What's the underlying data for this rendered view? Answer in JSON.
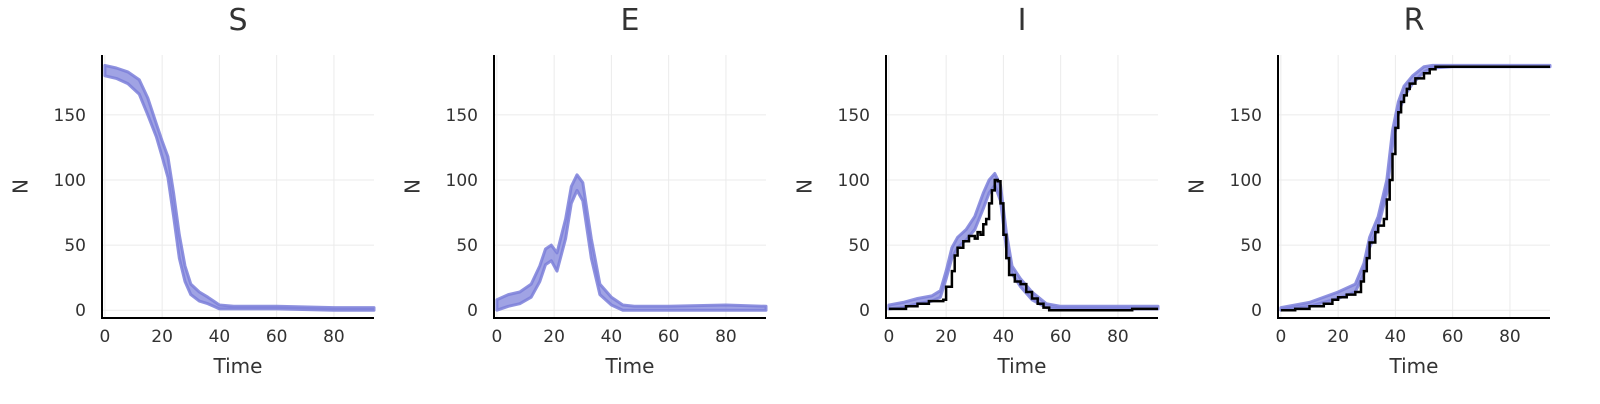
{
  "chart_data": [
    {
      "type": "line",
      "title": "S",
      "xlabel": "Time",
      "ylabel": "N",
      "xlim": [
        -1,
        94
      ],
      "ylim": [
        -6,
        196
      ],
      "xticks": [
        0,
        20,
        40,
        60,
        80
      ],
      "yticks": [
        0,
        50,
        100,
        150
      ],
      "grid": true,
      "series": [
        {
          "style": "band",
          "color": "#7b7fd9",
          "x": [
            0,
            4,
            8,
            12,
            15,
            18,
            20,
            22,
            24,
            26,
            28,
            30,
            33,
            36,
            38,
            40,
            45,
            60,
            80,
            94
          ],
          "upper": [
            188,
            186,
            183,
            177,
            163,
            143,
            130,
            118,
            90,
            58,
            34,
            20,
            14,
            10,
            7,
            4,
            3,
            3,
            2,
            2
          ],
          "lower": [
            180,
            178,
            174,
            166,
            150,
            133,
            118,
            102,
            72,
            40,
            22,
            12,
            7,
            5,
            3,
            1,
            1,
            1,
            0,
            0
          ]
        }
      ]
    },
    {
      "type": "line",
      "title": "E",
      "xlabel": "Time",
      "ylabel": "N",
      "xlim": [
        -1,
        94
      ],
      "ylim": [
        -6,
        196
      ],
      "xticks": [
        0,
        20,
        40,
        60,
        80
      ],
      "yticks": [
        0,
        50,
        100,
        150
      ],
      "grid": true,
      "series": [
        {
          "style": "band",
          "color": "#7b7fd9",
          "x": [
            0,
            4,
            8,
            12,
            15,
            17,
            19,
            21,
            24,
            26,
            28,
            30,
            33,
            36,
            40,
            44,
            48,
            60,
            80,
            94
          ],
          "upper": [
            8,
            12,
            14,
            20,
            34,
            47,
            50,
            44,
            70,
            95,
            104,
            98,
            55,
            20,
            10,
            4,
            3,
            3,
            4,
            3
          ],
          "lower": [
            0,
            3,
            5,
            10,
            22,
            35,
            38,
            30,
            55,
            82,
            92,
            84,
            40,
            12,
            4,
            0,
            0,
            0,
            0,
            0
          ]
        }
      ]
    },
    {
      "type": "line",
      "title": "I",
      "xlabel": "Time",
      "ylabel": "N",
      "xlim": [
        -1,
        94
      ],
      "ylim": [
        -6,
        196
      ],
      "xticks": [
        0,
        20,
        40,
        60,
        80
      ],
      "yticks": [
        0,
        50,
        100,
        150
      ],
      "grid": true,
      "series": [
        {
          "style": "band",
          "color": "#7b7fd9",
          "x": [
            0,
            5,
            10,
            15,
            18,
            20,
            22,
            24,
            27,
            30,
            33,
            35,
            37,
            39,
            41,
            43,
            46,
            50,
            55,
            60,
            94
          ],
          "upper": [
            4,
            6,
            9,
            11,
            15,
            30,
            48,
            56,
            62,
            72,
            90,
            100,
            105,
            96,
            60,
            34,
            24,
            14,
            5,
            3,
            3
          ],
          "lower": [
            1,
            2,
            5,
            7,
            10,
            24,
            40,
            48,
            54,
            62,
            78,
            90,
            96,
            84,
            48,
            28,
            18,
            8,
            2,
            1,
            1
          ]
        },
        {
          "style": "step",
          "color": "#000000",
          "x": [
            0,
            6,
            10,
            14,
            19,
            20,
            22,
            23,
            24,
            26,
            28,
            30,
            31,
            32,
            33,
            34,
            35,
            36,
            37,
            38,
            39,
            40,
            41,
            42,
            44,
            46,
            48,
            50,
            52,
            54,
            56,
            80,
            85,
            94
          ],
          "y": [
            1,
            3,
            5,
            7,
            8,
            18,
            30,
            42,
            48,
            53,
            57,
            55,
            60,
            58,
            66,
            70,
            82,
            92,
            100,
            99,
            82,
            58,
            40,
            27,
            22,
            20,
            14,
            9,
            5,
            2,
            0,
            0,
            1,
            1
          ]
        }
      ]
    },
    {
      "type": "line",
      "title": "R",
      "xlabel": "Time",
      "ylabel": "N",
      "xlim": [
        -1,
        94
      ],
      "ylim": [
        -6,
        196
      ],
      "xticks": [
        0,
        20,
        40,
        60,
        80
      ],
      "yticks": [
        0,
        50,
        100,
        150
      ],
      "grid": true,
      "series": [
        {
          "style": "band",
          "color": "#7b7fd9",
          "x": [
            0,
            10,
            20,
            26,
            29,
            31,
            34,
            37,
            39,
            41,
            43,
            46,
            50,
            53,
            60,
            94
          ],
          "upper": [
            2,
            6,
            14,
            20,
            36,
            56,
            72,
            100,
            138,
            160,
            172,
            180,
            187,
            188,
            188,
            188
          ],
          "lower": [
            0,
            3,
            9,
            14,
            28,
            48,
            64,
            90,
            126,
            150,
            164,
            174,
            183,
            186,
            187,
            187
          ]
        },
        {
          "style": "step",
          "color": "#000000",
          "x": [
            0,
            5,
            10,
            15,
            18,
            20,
            23,
            26,
            28,
            29,
            30,
            31,
            33,
            34,
            36,
            37,
            38,
            39,
            40,
            41,
            42,
            43,
            44,
            45,
            47,
            50,
            52,
            54,
            94
          ],
          "y": [
            0,
            1,
            3,
            5,
            8,
            10,
            12,
            14,
            22,
            30,
            40,
            52,
            60,
            65,
            70,
            85,
            100,
            120,
            140,
            152,
            160,
            165,
            170,
            174,
            178,
            182,
            185,
            187,
            187
          ]
        }
      ]
    }
  ]
}
